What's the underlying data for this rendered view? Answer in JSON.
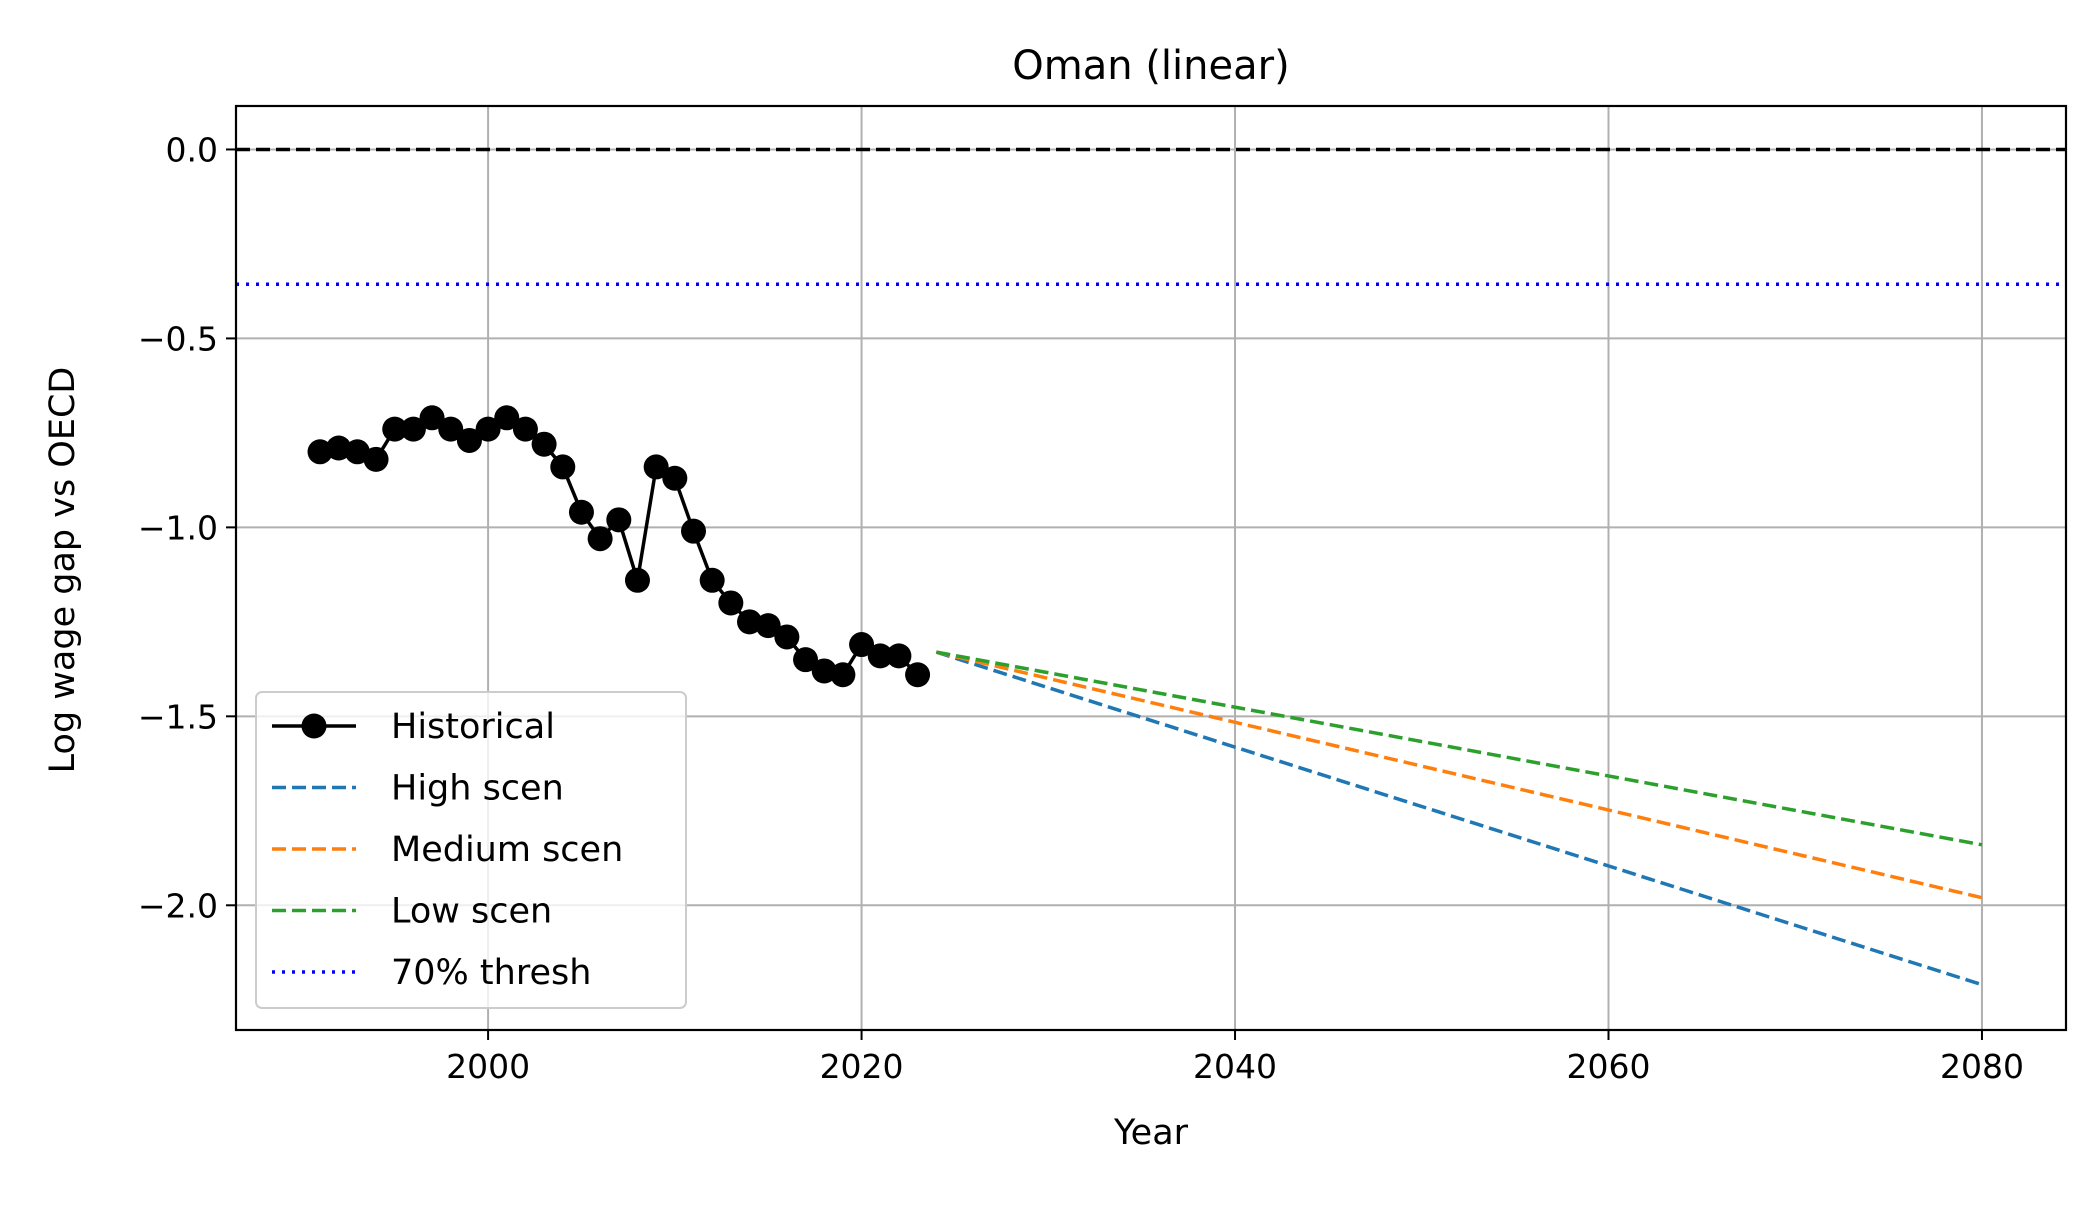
{
  "chart_data": {
    "type": "line",
    "title": "Oman (linear)",
    "xlabel": "Year",
    "ylabel": "Log wage gap vs OECD",
    "xlim": [
      1986.5,
      2084.5
    ],
    "ylim": [
      -2.33,
      0.115
    ],
    "xticks": [
      2000,
      2020,
      2040,
      2060,
      2080
    ],
    "yticks": [
      0.0,
      -0.5,
      -1.0,
      -1.5,
      -2.0
    ],
    "ytick_labels": [
      "0.0",
      "−0.5",
      "−1.0",
      "−1.5",
      "−2.0"
    ],
    "grid": true,
    "legend_position": "lower-left",
    "series": [
      {
        "name": "Historical",
        "style": "solid-marker",
        "color": "#000000",
        "x": [
          1991,
          1992,
          1993,
          1994,
          1995,
          1996,
          1997,
          1998,
          1999,
          2000,
          2001,
          2002,
          2003,
          2004,
          2005,
          2006,
          2007,
          2008,
          2009,
          2010,
          2011,
          2012,
          2013,
          2014,
          2015,
          2016,
          2017,
          2018,
          2019,
          2020,
          2021,
          2022,
          2023
        ],
        "y": [
          -0.8,
          -0.79,
          -0.8,
          -0.82,
          -0.74,
          -0.74,
          -0.71,
          -0.74,
          -0.77,
          -0.74,
          -0.71,
          -0.74,
          -0.78,
          -0.84,
          -0.96,
          -1.03,
          -0.98,
          -1.14,
          -0.84,
          -0.87,
          -1.01,
          -1.14,
          -1.2,
          -1.25,
          -1.26,
          -1.29,
          -1.35,
          -1.38,
          -1.39,
          -1.31,
          -1.34,
          -1.34,
          -1.39
        ]
      },
      {
        "name": "High scen",
        "style": "dashed",
        "color": "#1f77b4",
        "x": [
          2024,
          2080
        ],
        "y": [
          -1.33,
          -2.21
        ]
      },
      {
        "name": "Medium scen",
        "style": "dashed",
        "color": "#ff7f0e",
        "x": [
          2024,
          2080
        ],
        "y": [
          -1.33,
          -1.98
        ]
      },
      {
        "name": "Low scen",
        "style": "dashed",
        "color": "#2ca02c",
        "x": [
          2024,
          2080
        ],
        "y": [
          -1.33,
          -1.84
        ]
      },
      {
        "name": "70% thresh",
        "style": "dotted",
        "color": "#0000ff",
        "hline": -0.3567
      }
    ],
    "reference_line": {
      "y": 0.0,
      "style": "dashed",
      "color": "#000000"
    }
  }
}
